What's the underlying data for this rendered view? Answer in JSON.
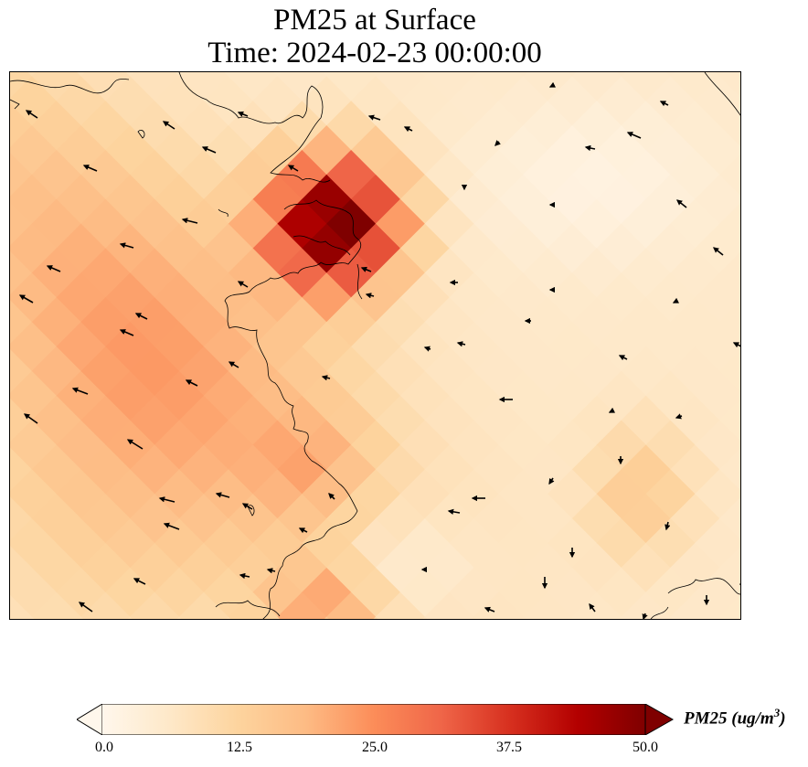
{
  "title": {
    "line1": "PM25 at Surface",
    "line2": "Time: 2024-02-23 00:00:00"
  },
  "colorbar": {
    "label": "PM25 (ug/m",
    "label_sup": "3",
    "label_close": ")",
    "ticks": [
      "0.0",
      "12.5",
      "25.0",
      "37.5",
      "50.0"
    ],
    "min": 0,
    "max": 50,
    "colormap": "OrRd",
    "extend": "both"
  },
  "map": {
    "variable": "PM25",
    "units": "ug/m3",
    "features": [
      "coastline",
      "wind-vectors"
    ],
    "hotspot_peak_value": 50
  }
}
